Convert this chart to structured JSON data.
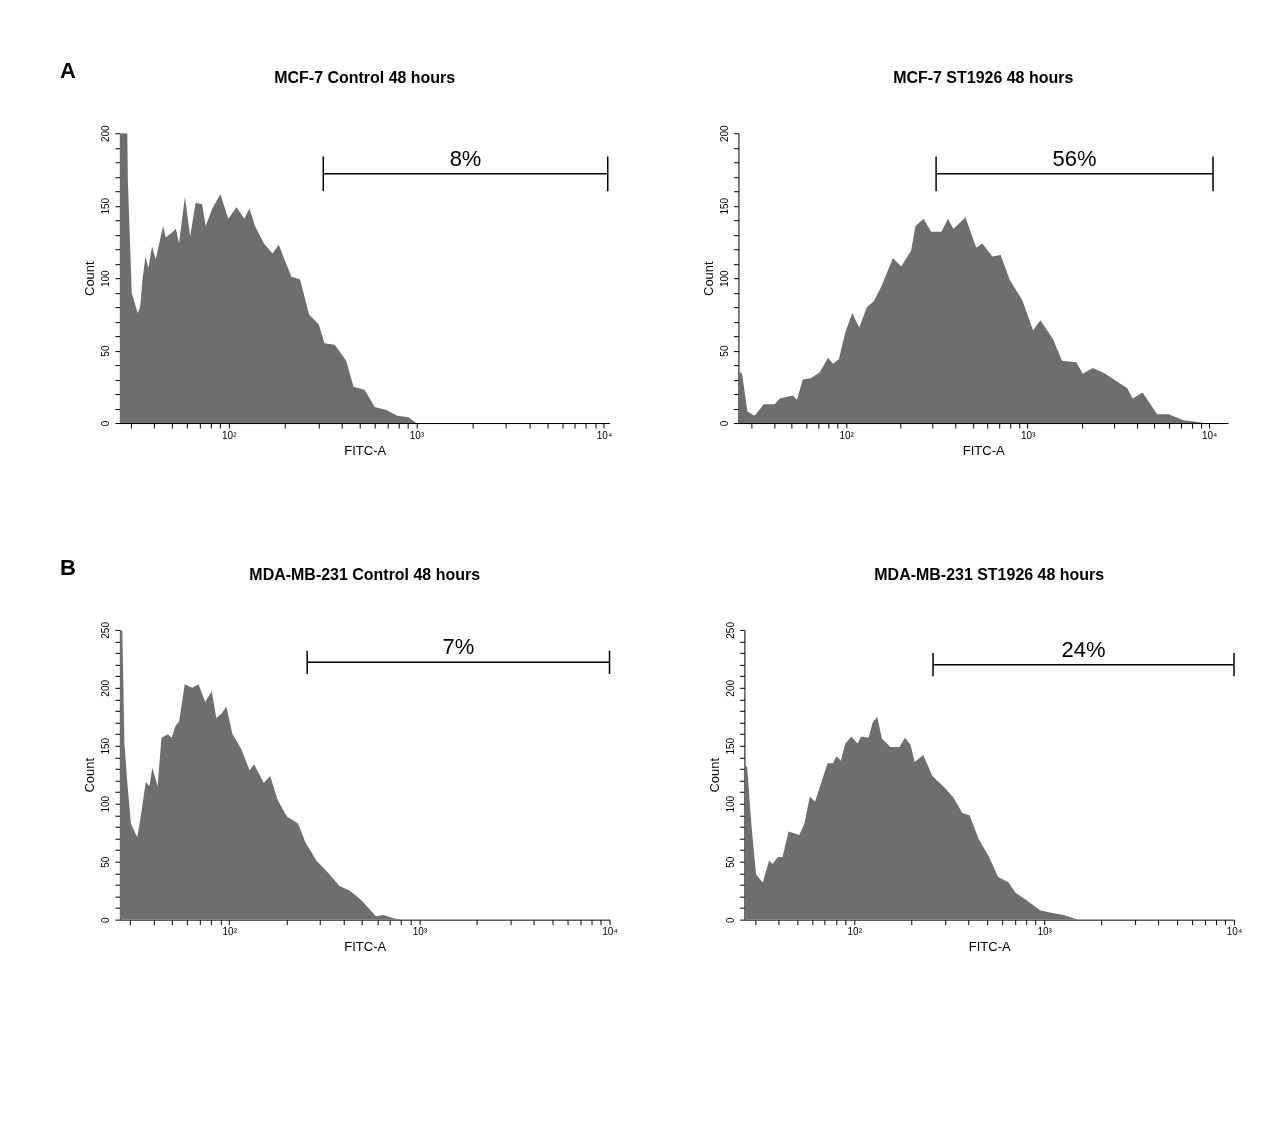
{
  "chart_data": [
    {
      "type": "area",
      "title": "MCF-7 Control 48 hours",
      "xlabel": "FITC-A",
      "ylabel": "Count",
      "log": "x",
      "grid": false,
      "xlim": [
        26.3,
        10700
      ],
      "ylim": [
        0,
        200
      ],
      "xticks": [
        {
          "value": 30,
          "label": null
        },
        {
          "value": 40,
          "label": null
        },
        {
          "value": 50,
          "label": null
        },
        {
          "value": 60,
          "label": null
        },
        {
          "value": 70,
          "label": null
        },
        {
          "value": 80,
          "label": null
        },
        {
          "value": 90,
          "label": null
        },
        {
          "value": 100,
          "label": "10²"
        },
        {
          "value": 200,
          "label": null
        },
        {
          "value": 300,
          "label": null
        },
        {
          "value": 400,
          "label": null
        },
        {
          "value": 500,
          "label": null
        },
        {
          "value": 600,
          "label": null
        },
        {
          "value": 700,
          "label": null
        },
        {
          "value": 800,
          "label": null
        },
        {
          "value": 900,
          "label": null
        },
        {
          "value": 1000,
          "label": "10³"
        },
        {
          "value": 2000,
          "label": null
        },
        {
          "value": 3000,
          "label": null
        },
        {
          "value": 4000,
          "label": null
        },
        {
          "value": 5000,
          "label": null
        },
        {
          "value": 6000,
          "label": null
        },
        {
          "value": 7000,
          "label": null
        },
        {
          "value": 8000,
          "label": null
        },
        {
          "value": 9000,
          "label": null
        },
        {
          "value": 10000,
          "label": "10⁴"
        }
      ],
      "yticks": [
        0,
        {
          "value": 10,
          "label": null
        },
        {
          "value": 20,
          "label": null
        },
        {
          "value": 30,
          "label": null
        },
        {
          "value": 40,
          "label": null
        },
        50,
        {
          "value": 60,
          "label": null
        },
        {
          "value": 70,
          "label": null
        },
        {
          "value": 80,
          "label": null
        },
        {
          "value": 90,
          "label": null
        },
        100,
        {
          "value": 110,
          "label": null
        },
        {
          "value": 120,
          "label": null
        },
        {
          "value": 130,
          "label": null
        },
        {
          "value": 140,
          "label": null
        },
        150,
        {
          "value": 160,
          "label": null
        },
        {
          "value": 170,
          "label": null
        },
        {
          "value": 180,
          "label": null
        },
        {
          "value": 190,
          "label": null
        },
        200
      ],
      "series": [
        {
          "color": "#6e6e6e",
          "x": [
            26.3,
            28.8,
            29.0,
            29.8,
            30.4,
            31.5,
            32.7,
            33.7,
            34.7,
            36.0,
            37.3,
            39.0,
            40.8,
            44.7,
            46.1,
            49.3,
            52.3,
            54.3,
            58.4,
            62.3,
            66.6,
            72.1,
            75.4,
            81.7,
            90.2,
            99.5,
            110,
            121,
            129,
            138,
            154,
            171,
            185,
            198,
            216,
            240,
            268,
            302,
            324,
            367,
            423,
            462,
            529,
            600,
            692,
            792,
            906,
            1000
          ],
          "values": [
            200,
            200,
            167,
            124,
            90,
            83,
            76,
            80,
            99,
            115,
            107,
            122,
            113,
            136,
            128,
            131,
            134,
            124,
            156,
            129,
            152,
            151,
            136,
            148,
            158,
            141,
            149,
            141,
            148,
            136,
            124,
            117,
            123,
            113,
            101,
            99,
            75,
            68,
            55,
            54,
            43,
            25,
            23,
            11,
            9,
            5,
            4,
            0
          ]
        },
        {
          "type": "line",
          "name": "8%",
          "color": "#000000",
          "x": [
            319,
            10470
          ],
          "values": [
            172,
            172
          ],
          "errors": [
            12,
            12
          ]
        }
      ],
      "annotations": [
        "A"
      ]
    },
    {
      "type": "area",
      "title": "MCF-7 ST1926 48 hours",
      "xlabel": "FITC-A",
      "ylabel": "Count",
      "log": "x",
      "grid": false,
      "xlim": [
        25.5,
        12700
      ],
      "ylim": [
        0,
        200
      ],
      "xticks": [
        {
          "value": 30,
          "label": null
        },
        {
          "value": 40,
          "label": null
        },
        {
          "value": 50,
          "label": null
        },
        {
          "value": 60,
          "label": null
        },
        {
          "value": 70,
          "label": null
        },
        {
          "value": 80,
          "label": null
        },
        {
          "value": 90,
          "label": null
        },
        {
          "value": 100,
          "label": "10²"
        },
        {
          "value": 200,
          "label": null
        },
        {
          "value": 300,
          "label": null
        },
        {
          "value": 400,
          "label": null
        },
        {
          "value": 500,
          "label": null
        },
        {
          "value": 600,
          "label": null
        },
        {
          "value": 700,
          "label": null
        },
        {
          "value": 800,
          "label": null
        },
        {
          "value": 900,
          "label": null
        },
        {
          "value": 1000,
          "label": "10³"
        },
        {
          "value": 2000,
          "label": null
        },
        {
          "value": 3000,
          "label": null
        },
        {
          "value": 4000,
          "label": null
        },
        {
          "value": 5000,
          "label": null
        },
        {
          "value": 6000,
          "label": null
        },
        {
          "value": 7000,
          "label": null
        },
        {
          "value": 8000,
          "label": null
        },
        {
          "value": 9000,
          "label": null
        },
        {
          "value": 10000,
          "label": "10⁴"
        }
      ],
      "yticks": [
        0,
        {
          "value": 10,
          "label": null
        },
        {
          "value": 20,
          "label": null
        },
        {
          "value": 30,
          "label": null
        },
        {
          "value": 40,
          "label": null
        },
        50,
        {
          "value": 60,
          "label": null
        },
        {
          "value": 70,
          "label": null
        },
        {
          "value": 80,
          "label": null
        },
        {
          "value": 90,
          "label": null
        },
        100,
        {
          "value": 110,
          "label": null
        },
        {
          "value": 120,
          "label": null
        },
        {
          "value": 130,
          "label": null
        },
        {
          "value": 140,
          "label": null
        },
        150,
        {
          "value": 160,
          "label": null
        },
        {
          "value": 170,
          "label": null
        },
        {
          "value": 180,
          "label": null
        },
        {
          "value": 190,
          "label": null
        },
        200
      ],
      "series": [
        {
          "color": "#6e6e6e",
          "x": [
            25.5,
            26.7,
            28.6,
            31.3,
            35.2,
            40.4,
            43.2,
            50.7,
            53.6,
            57.7,
            63.8,
            71.6,
            79.5,
            84.7,
            91.2,
            98.6,
            108,
            118,
            130,
            142,
            156,
            181,
            201,
            228,
            241,
            267,
            294,
            335,
            364,
            390,
            454,
            521,
            563,
            638,
            710,
            795,
            933,
            1071,
            1175,
            1378,
            1545,
            1857,
            2010,
            2283,
            2682,
            3076,
            3535,
            3788,
            4300,
            5165,
            5980,
            7195,
            8250,
            9460
          ],
          "values": [
            36,
            34,
            8,
            5,
            13,
            13,
            17,
            19,
            16,
            30,
            31,
            35,
            45,
            41,
            44,
            62,
            76,
            66,
            80,
            84,
            94,
            114,
            108,
            119,
            136,
            141,
            132,
            132,
            141,
            134,
            142,
            121,
            124,
            115,
            116,
            99,
            85,
            64,
            71,
            58,
            43,
            42,
            34,
            38,
            34,
            29,
            24,
            17,
            21,
            6,
            6,
            2,
            1,
            0
          ]
        },
        {
          "type": "line",
          "name": "56%",
          "color": "#000000",
          "x": [
            313,
            10500
          ],
          "values": [
            172,
            172
          ],
          "errors": [
            12,
            12
          ]
        }
      ]
    },
    {
      "type": "area",
      "title": "MDA-MB-231 Control 48 hours",
      "xlabel": "FITC-A",
      "ylabel": "Count",
      "log": "x",
      "grid": false,
      "xlim": [
        26.6,
        10000
      ],
      "ylim": [
        0,
        250
      ],
      "xticks": [
        {
          "value": 30,
          "label": null
        },
        {
          "value": 40,
          "label": null
        },
        {
          "value": 50,
          "label": null
        },
        {
          "value": 60,
          "label": null
        },
        {
          "value": 70,
          "label": null
        },
        {
          "value": 80,
          "label": null
        },
        {
          "value": 90,
          "label": null
        },
        {
          "value": 100,
          "label": "10²"
        },
        {
          "value": 200,
          "label": null
        },
        {
          "value": 300,
          "label": null
        },
        {
          "value": 400,
          "label": null
        },
        {
          "value": 500,
          "label": null
        },
        {
          "value": 600,
          "label": null
        },
        {
          "value": 700,
          "label": null
        },
        {
          "value": 800,
          "label": null
        },
        {
          "value": 900,
          "label": null
        },
        {
          "value": 1000,
          "label": "10³"
        },
        {
          "value": 2000,
          "label": null
        },
        {
          "value": 3000,
          "label": null
        },
        {
          "value": 4000,
          "label": null
        },
        {
          "value": 5000,
          "label": null
        },
        {
          "value": 6000,
          "label": null
        },
        {
          "value": 7000,
          "label": null
        },
        {
          "value": 8000,
          "label": null
        },
        {
          "value": 9000,
          "label": null
        },
        {
          "value": 10000,
          "label": "10⁴"
        }
      ],
      "yticks": [
        0,
        {
          "value": 10,
          "label": null
        },
        {
          "value": 20,
          "label": null
        },
        {
          "value": 30,
          "label": null
        },
        {
          "value": 40,
          "label": null
        },
        50,
        {
          "value": 60,
          "label": null
        },
        {
          "value": 70,
          "label": null
        },
        {
          "value": 80,
          "label": null
        },
        {
          "value": 90,
          "label": null
        },
        100,
        {
          "value": 110,
          "label": null
        },
        {
          "value": 120,
          "label": null
        },
        {
          "value": 130,
          "label": null
        },
        {
          "value": 140,
          "label": null
        },
        150,
        {
          "value": 160,
          "label": null
        },
        {
          "value": 170,
          "label": null
        },
        {
          "value": 180,
          "label": null
        },
        {
          "value": 190,
          "label": null
        },
        200,
        {
          "value": 210,
          "label": null
        },
        {
          "value": 220,
          "label": null
        },
        {
          "value": 230,
          "label": null
        },
        {
          "value": 240,
          "label": null
        },
        250
      ],
      "series": [
        {
          "color": "#6e6e6e",
          "x": [
            26.6,
            27.4,
            28.1,
            29.0,
            30.4,
            32.8,
            34.0,
            36.4,
            38.0,
            39.4,
            42.0,
            44.0,
            47.6,
            49.8,
            52.1,
            54.5,
            58.3,
            63.8,
            68.9,
            74.7,
            80.9,
            85.5,
            91.4,
            96.5,
            104,
            115,
            128,
            135,
            152,
            164,
            180,
            201,
            230,
            251,
            287,
            329,
            380,
            431,
            494,
            591,
            647,
            740,
            809
          ],
          "values": [
            250,
            249,
            152,
            121,
            83,
            71,
            86,
            119,
            115,
            131,
            115,
            157,
            160,
            157,
            167,
            171,
            203,
            200,
            203,
            188,
            197,
            174,
            178,
            184,
            160,
            148,
            129,
            134,
            118,
            124,
            103,
            89,
            83,
            67,
            51,
            41,
            29,
            25,
            17,
            3,
            4,
            1,
            0
          ]
        },
        {
          "type": "line",
          "name": "7%",
          "color": "#000000",
          "x": [
            257,
            10000
          ],
          "values": [
            222,
            222
          ],
          "errors": [
            10,
            10
          ]
        }
      ],
      "annotations": [
        "B"
      ]
    },
    {
      "type": "area",
      "title": "MDA-MB-231 ST1926 48 hours",
      "xlabel": "FITC-A",
      "ylabel": "Count",
      "log": "x",
      "grid": false,
      "xlim": [
        26.4,
        10000
      ],
      "ylim": [
        0,
        250
      ],
      "xticks": [
        {
          "value": 30,
          "label": null
        },
        {
          "value": 40,
          "label": null
        },
        {
          "value": 50,
          "label": null
        },
        {
          "value": 60,
          "label": null
        },
        {
          "value": 70,
          "label": null
        },
        {
          "value": 80,
          "label": null
        },
        {
          "value": 90,
          "label": null
        },
        {
          "value": 100,
          "label": "10²"
        },
        {
          "value": 200,
          "label": null
        },
        {
          "value": 300,
          "label": null
        },
        {
          "value": 400,
          "label": null
        },
        {
          "value": 500,
          "label": null
        },
        {
          "value": 600,
          "label": null
        },
        {
          "value": 700,
          "label": null
        },
        {
          "value": 800,
          "label": null
        },
        {
          "value": 900,
          "label": null
        },
        {
          "value": 1000,
          "label": "10³"
        },
        {
          "value": 2000,
          "label": null
        },
        {
          "value": 3000,
          "label": null
        },
        {
          "value": 4000,
          "label": null
        },
        {
          "value": 5000,
          "label": null
        },
        {
          "value": 6000,
          "label": null
        },
        {
          "value": 7000,
          "label": null
        },
        {
          "value": 8000,
          "label": null
        },
        {
          "value": 9000,
          "label": null
        },
        {
          "value": 10000,
          "label": "10⁴"
        }
      ],
      "yticks": [
        0,
        {
          "value": 10,
          "label": null
        },
        {
          "value": 20,
          "label": null
        },
        {
          "value": 30,
          "label": null
        },
        {
          "value": 40,
          "label": null
        },
        50,
        {
          "value": 60,
          "label": null
        },
        {
          "value": 70,
          "label": null
        },
        {
          "value": 80,
          "label": null
        },
        {
          "value": 90,
          "label": null
        },
        100,
        {
          "value": 110,
          "label": null
        },
        {
          "value": 120,
          "label": null
        },
        {
          "value": 130,
          "label": null
        },
        {
          "value": 140,
          "label": null
        },
        150,
        {
          "value": 160,
          "label": null
        },
        {
          "value": 170,
          "label": null
        },
        {
          "value": 180,
          "label": null
        },
        {
          "value": 190,
          "label": null
        },
        200,
        {
          "value": 210,
          "label": null
        },
        {
          "value": 220,
          "label": null
        },
        {
          "value": 230,
          "label": null
        },
        {
          "value": 240,
          "label": null
        },
        250
      ],
      "series": [
        {
          "color": "#6e6e6e",
          "x": [
            26.4,
            27.3,
            28.7,
            30.4,
            33.0,
            35.6,
            37.1,
            39.6,
            41.9,
            45.1,
            51.3,
            54.7,
            58.3,
            62.2,
            72.4,
            77.2,
            80.7,
            85.0,
            89.8,
            96.6,
            104,
            109,
            119,
            125,
            132,
            140,
            155,
            173,
            185,
            198,
            208,
            231,
            258,
            303,
            334,
            371,
            405,
            451,
            513,
            571,
            650,
            708,
            806,
            957,
            1089,
            1267,
            1507
          ],
          "values": [
            133,
            132,
            83,
            39,
            32,
            51,
            48,
            54,
            54,
            76,
            73,
            83,
            106,
            102,
            135,
            135,
            141,
            137,
            152,
            158,
            152,
            158,
            157,
            170,
            175,
            156,
            149,
            149,
            157,
            151,
            136,
            142,
            124,
            113,
            105,
            92,
            90,
            70,
            54,
            37,
            32,
            23,
            17,
            8,
            6,
            4,
            0
          ]
        },
        {
          "type": "line",
          "name": "24%",
          "color": "#000000",
          "x": [
            260,
            10000
          ],
          "values": [
            220,
            220
          ],
          "errors": [
            10,
            10
          ]
        }
      ]
    }
  ]
}
